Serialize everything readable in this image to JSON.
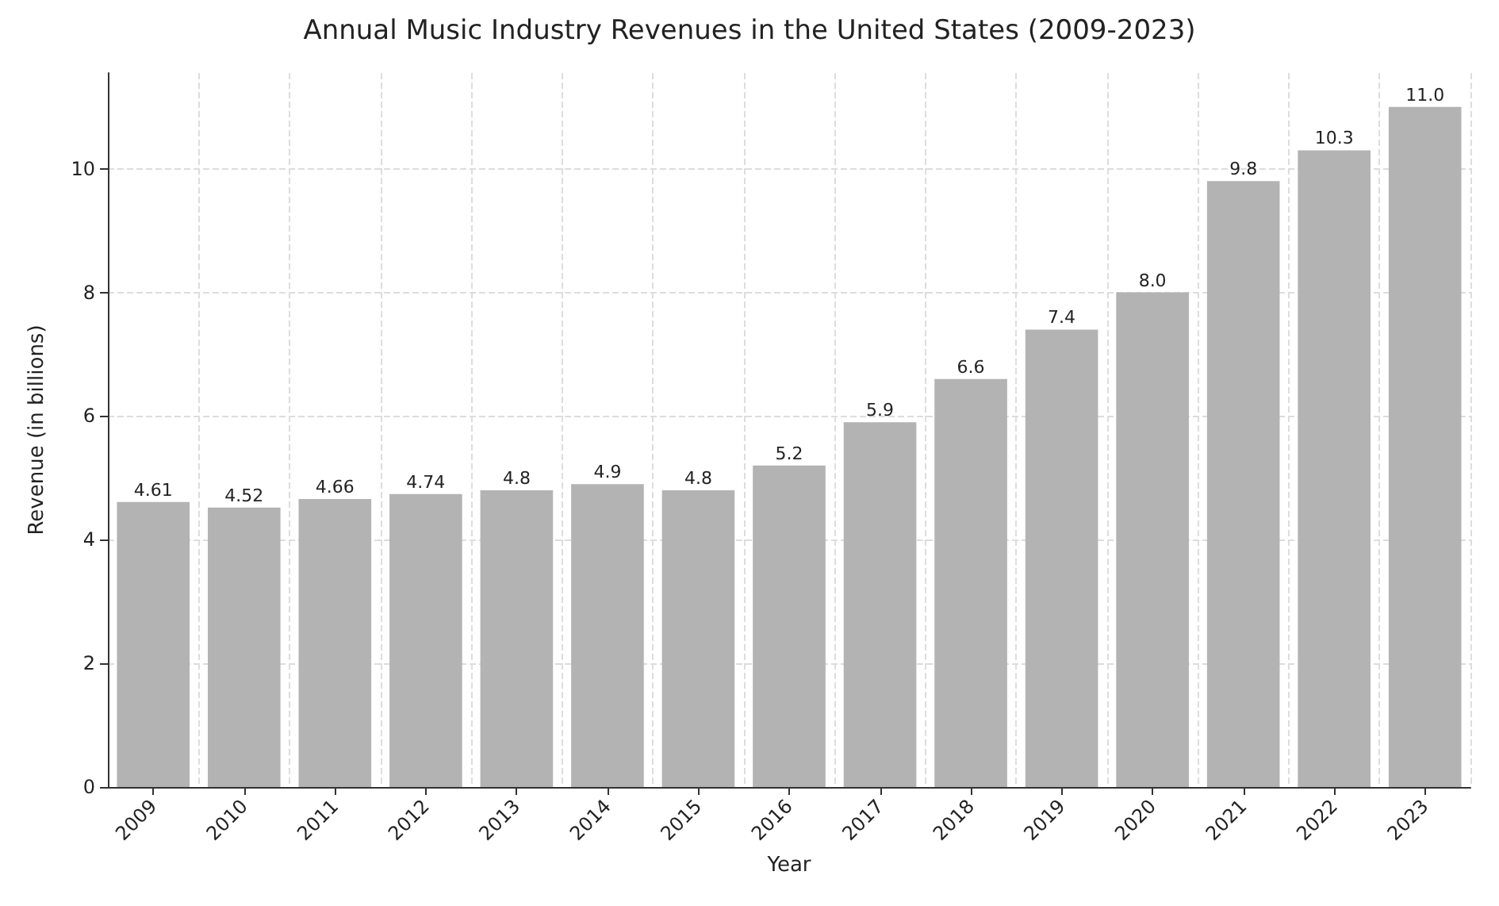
{
  "chart_data": {
    "type": "bar",
    "title": "Annual Music Industry Revenues in the United States (2009-2023)",
    "xlabel": "Year",
    "ylabel": "Revenue (in billions)",
    "categories": [
      "2009",
      "2010",
      "2011",
      "2012",
      "2013",
      "2014",
      "2015",
      "2016",
      "2017",
      "2018",
      "2019",
      "2020",
      "2021",
      "2022",
      "2023"
    ],
    "values": [
      4.61,
      4.52,
      4.66,
      4.74,
      4.8,
      4.9,
      4.8,
      5.2,
      5.9,
      6.6,
      7.4,
      8.0,
      9.8,
      10.3,
      11.0
    ],
    "value_labels": [
      "4.61",
      "4.52",
      "4.66",
      "4.74",
      "4.8",
      "4.9",
      "4.8",
      "5.2",
      "5.9",
      "6.6",
      "7.4",
      "8.0",
      "9.8",
      "10.3",
      "11.0"
    ],
    "color": "#b3b3b3",
    "ylim": [
      0,
      11.55
    ],
    "yticks": [
      0,
      2,
      4,
      6,
      8,
      10
    ],
    "grid": true
  }
}
